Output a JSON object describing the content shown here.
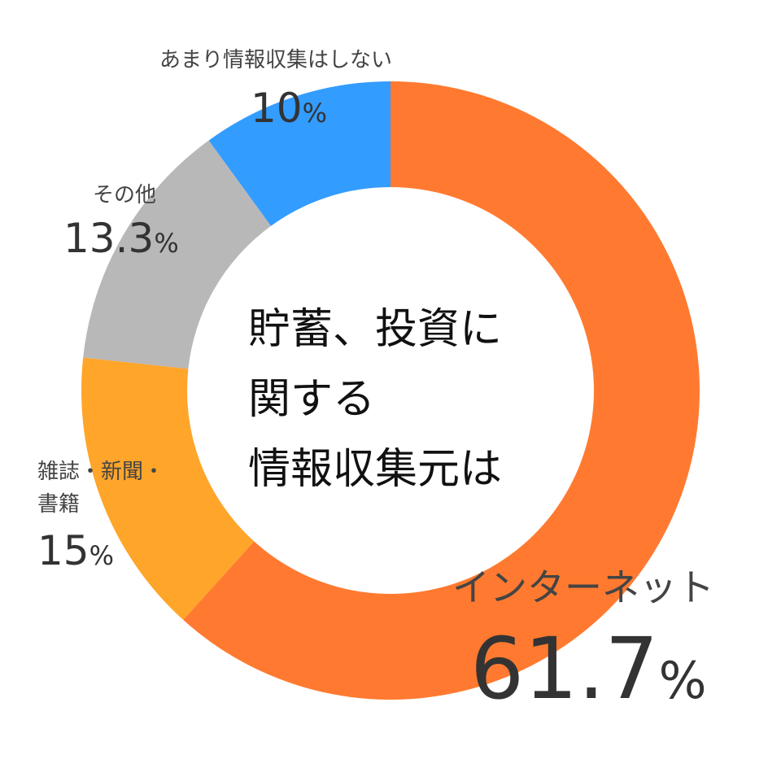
{
  "chart_data": {
    "type": "pie",
    "title": "",
    "center_text": [
      "貯蓄、投資に",
      "関する",
      "情報収集元は"
    ],
    "categories": [
      "インターネット",
      "雑誌・新聞・書籍",
      "その他",
      "あまり情報収集はしない"
    ],
    "label_lines": [
      [
        "インターネット"
      ],
      [
        "雑誌・新聞・",
        "書籍"
      ],
      [
        "その他"
      ],
      [
        "あまり情報収集はしない"
      ]
    ],
    "values": [
      61.7,
      15,
      13.3,
      10
    ],
    "value_text": [
      "61.7",
      "15",
      "13.3",
      "10"
    ],
    "unit": "%",
    "colors": [
      "#FF7A30",
      "#FFA52A",
      "#B8B8B8",
      "#339CFF"
    ],
    "legend": "none",
    "grid": false
  }
}
